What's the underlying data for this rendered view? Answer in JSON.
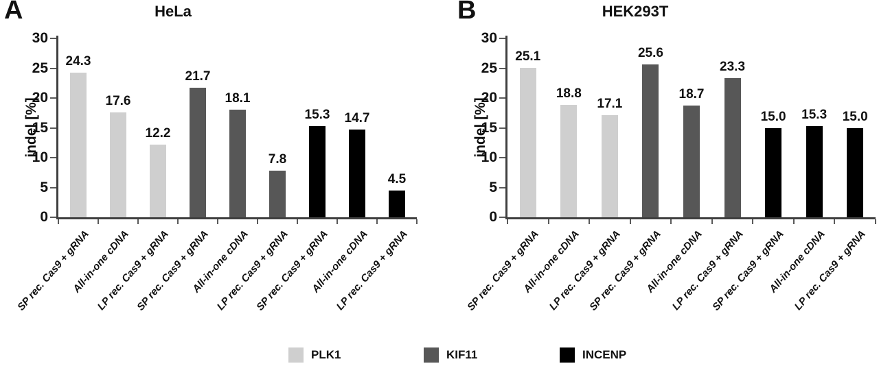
{
  "chart_data": [
    {
      "type": "bar",
      "panel_letter": "A",
      "title": "HeLa",
      "ylabel": "indel [%]",
      "ylim": [
        0,
        30
      ],
      "yticks": [
        0,
        5,
        10,
        15,
        20,
        25,
        30
      ],
      "grid": false,
      "legend_position": "bottom",
      "categories": [
        "SP rec. Cas9 + gRNA",
        "All-in-one cDNA",
        "LP rec. Cas9 + gRNA",
        "SP rec. Cas9 + gRNA",
        "All-in-one cDNA",
        "LP rec. Cas9 + gRNA",
        "SP rec. Cas9 + gRNA",
        "All-in-one cDNA",
        "LP rec. Cas9 + gRNA"
      ],
      "values": [
        24.3,
        17.6,
        12.2,
        21.7,
        18.1,
        7.8,
        15.3,
        14.7,
        4.5
      ],
      "groups": [
        "PLK1",
        "PLK1",
        "PLK1",
        "KIF11",
        "KIF11",
        "KIF11",
        "INCENP",
        "INCENP",
        "INCENP"
      ]
    },
    {
      "type": "bar",
      "panel_letter": "B",
      "title": "HEK293T",
      "ylabel": "indel [%]",
      "ylim": [
        0,
        30
      ],
      "yticks": [
        0,
        5,
        10,
        15,
        20,
        25,
        30
      ],
      "grid": false,
      "legend_position": "bottom",
      "categories": [
        "SP rec. Cas9 + gRNA",
        "All-in-one cDNA",
        "LP rec. Cas9 + gRNA",
        "SP rec. Cas9 + gRNA",
        "All-in-one cDNA",
        "LP rec. Cas9 + gRNA",
        "SP rec. Cas9 + gRNA",
        "All-in-one cDNA",
        "LP rec. Cas9 + gRNA"
      ],
      "values": [
        25.1,
        18.8,
        17.1,
        25.6,
        18.7,
        23.3,
        15.0,
        15.3,
        15.0
      ],
      "groups": [
        "PLK1",
        "PLK1",
        "PLK1",
        "KIF11",
        "KIF11",
        "KIF11",
        "INCENP",
        "INCENP",
        "INCENP"
      ]
    }
  ],
  "legend": {
    "position": "bottom",
    "entries": [
      {
        "label": "PLK1",
        "color": "#cfcfcf"
      },
      {
        "label": "KIF11",
        "color": "#575757"
      },
      {
        "label": "INCENP",
        "color": "#000000"
      }
    ]
  }
}
